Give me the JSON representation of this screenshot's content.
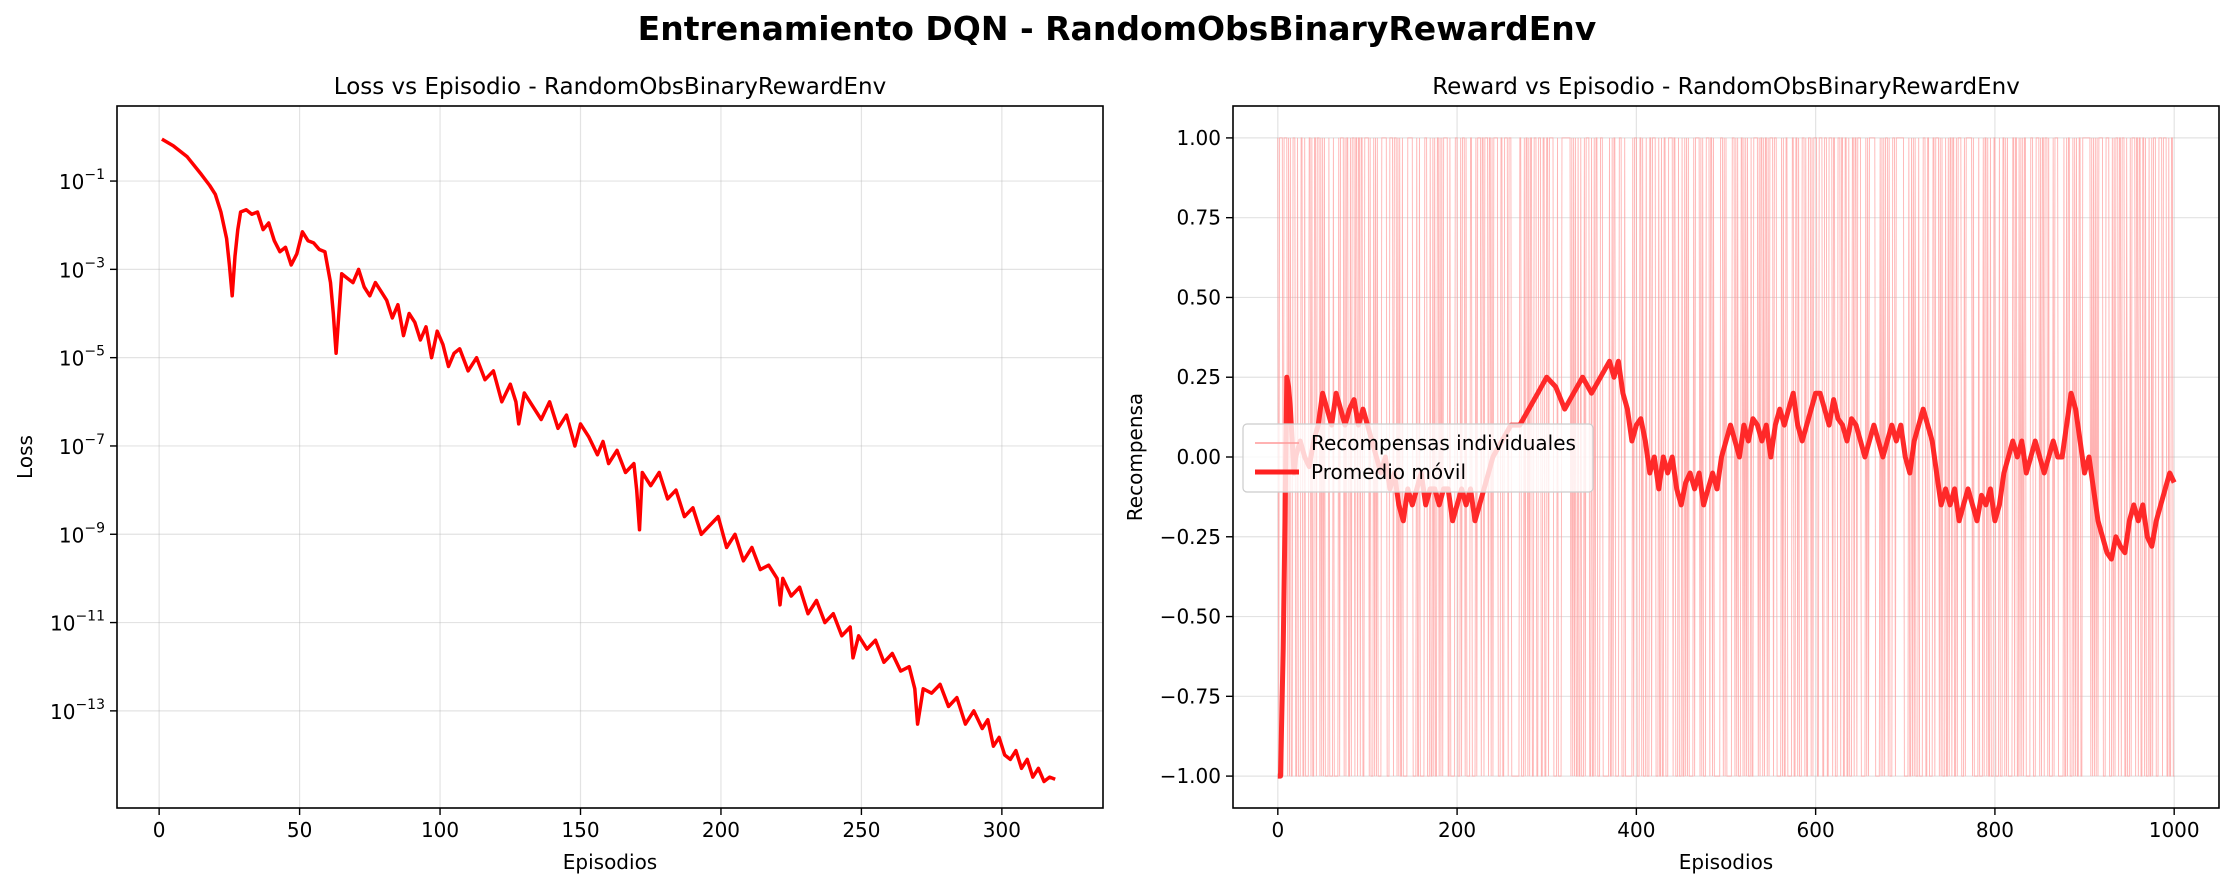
{
  "figure": {
    "suptitle": "Entrenamiento DQN - RandomObsBinaryRewardEnv"
  },
  "chart_data": [
    {
      "type": "line",
      "title": "Loss vs Episodio - RandomObsBinaryRewardEnv",
      "xlabel": "Episodios",
      "ylabel": "Loss",
      "xscale": "linear",
      "yscale": "log",
      "xlim": [
        -15,
        336
      ],
      "ylim_exp": [
        -15.2,
        0.7
      ],
      "xticks": [
        "0",
        "50",
        "100",
        "150",
        "200",
        "250",
        "300"
      ],
      "xtick_values": [
        0,
        50,
        100,
        150,
        200,
        250,
        300
      ],
      "ytick_exponents": [
        -13,
        -11,
        -9,
        -7,
        -5,
        -3,
        -1
      ],
      "ytick_base": "10",
      "grid": true,
      "series": [
        {
          "color": "#ff0000",
          "x": [
            1,
            5,
            10,
            15,
            18,
            20,
            22,
            24,
            25,
            26,
            27,
            28,
            29,
            31,
            33,
            35,
            37,
            39,
            41,
            43,
            45,
            47,
            49,
            51,
            53,
            55,
            57,
            59,
            61,
            62,
            63,
            64,
            65,
            67,
            69,
            71,
            73,
            75,
            77,
            79,
            81,
            83,
            85,
            87,
            89,
            91,
            93,
            95,
            97,
            99,
            101,
            103,
            105,
            107,
            110,
            113,
            116,
            119,
            122,
            125,
            127,
            128,
            130,
            133,
            136,
            139,
            142,
            145,
            148,
            150,
            153,
            156,
            158,
            160,
            163,
            166,
            169,
            170,
            171,
            172,
            175,
            178,
            181,
            184,
            187,
            190,
            193,
            196,
            199,
            202,
            205,
            208,
            211,
            214,
            217,
            220,
            221,
            222,
            225,
            228,
            231,
            234,
            237,
            240,
            243,
            246,
            247,
            249,
            252,
            255,
            258,
            261,
            264,
            267,
            269,
            270,
            272,
            275,
            278,
            281,
            284,
            287,
            290,
            293,
            295,
            297,
            299,
            301,
            303,
            305,
            307,
            309,
            311,
            313,
            315,
            317,
            319
          ],
          "log10_y": [
            -0.05,
            -0.2,
            -0.45,
            -0.85,
            -1.1,
            -1.3,
            -1.7,
            -2.3,
            -2.9,
            -3.6,
            -2.7,
            -2.1,
            -1.7,
            -1.65,
            -1.75,
            -1.7,
            -2.1,
            -1.95,
            -2.35,
            -2.6,
            -2.5,
            -2.9,
            -2.65,
            -2.15,
            -2.35,
            -2.4,
            -2.55,
            -2.6,
            -3.3,
            -4.0,
            -4.9,
            -4.0,
            -3.1,
            -3.2,
            -3.3,
            -3.0,
            -3.4,
            -3.6,
            -3.3,
            -3.5,
            -3.7,
            -4.1,
            -3.8,
            -4.5,
            -4.0,
            -4.2,
            -4.6,
            -4.3,
            -5.0,
            -4.4,
            -4.7,
            -5.2,
            -4.9,
            -4.8,
            -5.3,
            -5.0,
            -5.5,
            -5.3,
            -6.0,
            -5.6,
            -6.0,
            -6.5,
            -5.8,
            -6.1,
            -6.4,
            -6.0,
            -6.6,
            -6.3,
            -7.0,
            -6.5,
            -6.8,
            -7.2,
            -6.9,
            -7.4,
            -7.1,
            -7.6,
            -7.4,
            -8.0,
            -8.9,
            -7.6,
            -7.9,
            -7.6,
            -8.2,
            -8.0,
            -8.6,
            -8.4,
            -9.0,
            -8.8,
            -8.6,
            -9.3,
            -9.0,
            -9.6,
            -9.3,
            -9.8,
            -9.7,
            -10.0,
            -10.6,
            -10.0,
            -10.4,
            -10.2,
            -10.8,
            -10.5,
            -11.0,
            -10.8,
            -11.3,
            -11.1,
            -11.8,
            -11.3,
            -11.6,
            -11.4,
            -11.9,
            -11.7,
            -12.1,
            -12.0,
            -12.5,
            -13.3,
            -12.5,
            -12.6,
            -12.4,
            -12.9,
            -12.7,
            -13.3,
            -13.0,
            -13.4,
            -13.2,
            -13.8,
            -13.6,
            -14.0,
            -14.1,
            -13.9,
            -14.3,
            -14.1,
            -14.5,
            -14.3,
            -14.6,
            -14.5,
            -14.55
          ]
        }
      ]
    },
    {
      "type": "line",
      "title": "Reward vs Episodio - RandomObsBinaryRewardEnv",
      "xlabel": "Episodios",
      "ylabel": "Recompensa",
      "xscale": "linear",
      "yscale": "linear",
      "xlim": [
        -50,
        1050
      ],
      "ylim": [
        -1.1,
        1.1
      ],
      "xticks": [
        "0",
        "200",
        "400",
        "600",
        "800",
        "1000"
      ],
      "xtick_values": [
        0,
        200,
        400,
        600,
        800,
        1000
      ],
      "yticks": [
        "−1.00",
        "−0.75",
        "−0.50",
        "−0.25",
        "0.00",
        "0.25",
        "0.50",
        "0.75",
        "1.00"
      ],
      "ytick_values": [
        -1.0,
        -0.75,
        -0.5,
        -0.25,
        0.0,
        0.25,
        0.5,
        0.75,
        1.0
      ],
      "grid": true,
      "legend": {
        "placement": "center-left",
        "entries": [
          {
            "label": "Recompensas individuales",
            "color": "#ff9999"
          },
          {
            "label": "Promedio móvil",
            "color": "#ff2020"
          }
        ]
      },
      "series": [
        {
          "label": "Recompensas individuales",
          "color": "#ff9999",
          "x_range": [
            0,
            1000
          ],
          "values": [
            -1,
            1
          ],
          "episodes": 1000
        },
        {
          "label": "Promedio móvil",
          "color": "#ff2020",
          "x": [
            0,
            3,
            6,
            8,
            10,
            12,
            14,
            16,
            18,
            20,
            25,
            30,
            35,
            40,
            45,
            50,
            55,
            60,
            65,
            70,
            75,
            80,
            85,
            90,
            95,
            100,
            105,
            110,
            115,
            120,
            125,
            130,
            135,
            140,
            145,
            150,
            155,
            160,
            165,
            170,
            175,
            180,
            185,
            190,
            195,
            200,
            205,
            210,
            215,
            220,
            225,
            230,
            235,
            240,
            250,
            260,
            270,
            280,
            290,
            300,
            310,
            320,
            330,
            340,
            350,
            360,
            370,
            375,
            380,
            385,
            390,
            395,
            400,
            405,
            410,
            415,
            420,
            425,
            430,
            435,
            440,
            445,
            450,
            455,
            460,
            465,
            470,
            475,
            480,
            485,
            490,
            495,
            500,
            505,
            510,
            515,
            520,
            525,
            530,
            535,
            540,
            545,
            550,
            555,
            560,
            565,
            570,
            575,
            580,
            585,
            590,
            595,
            600,
            605,
            610,
            615,
            620,
            625,
            630,
            635,
            640,
            645,
            650,
            655,
            660,
            665,
            670,
            675,
            680,
            685,
            690,
            695,
            700,
            705,
            710,
            715,
            720,
            725,
            730,
            735,
            740,
            745,
            750,
            755,
            760,
            765,
            770,
            775,
            780,
            785,
            790,
            795,
            800,
            805,
            810,
            815,
            820,
            825,
            830,
            835,
            840,
            845,
            850,
            855,
            860,
            865,
            870,
            875,
            880,
            885,
            890,
            895,
            900,
            905,
            910,
            915,
            920,
            925,
            930,
            935,
            940,
            945,
            950,
            955,
            960,
            965,
            970,
            975,
            980,
            985,
            990,
            995,
            1000
          ],
          "y": [
            -1.0,
            -1.0,
            -0.6,
            -0.2,
            0.25,
            0.22,
            0.15,
            0.05,
            -0.05,
            0.0,
            0.05,
            0.0,
            -0.03,
            0.05,
            0.1,
            0.2,
            0.15,
            0.1,
            0.2,
            0.15,
            0.1,
            0.15,
            0.18,
            0.1,
            0.15,
            0.1,
            0.05,
            0.0,
            -0.05,
            0.0,
            -0.1,
            -0.05,
            -0.15,
            -0.2,
            -0.1,
            -0.15,
            -0.1,
            -0.05,
            -0.15,
            -0.1,
            -0.1,
            -0.15,
            -0.1,
            -0.1,
            -0.2,
            -0.15,
            -0.1,
            -0.15,
            -0.1,
            -0.2,
            -0.15,
            -0.1,
            -0.05,
            0.0,
            0.05,
            0.1,
            0.1,
            0.15,
            0.2,
            0.25,
            0.22,
            0.15,
            0.2,
            0.25,
            0.2,
            0.25,
            0.3,
            0.25,
            0.3,
            0.2,
            0.15,
            0.05,
            0.1,
            0.12,
            0.05,
            -0.05,
            0.0,
            -0.1,
            0.0,
            -0.05,
            0.0,
            -0.1,
            -0.15,
            -0.08,
            -0.05,
            -0.1,
            -0.05,
            -0.15,
            -0.1,
            -0.05,
            -0.1,
            0.0,
            0.05,
            0.1,
            0.05,
            0.0,
            0.1,
            0.05,
            0.12,
            0.1,
            0.05,
            0.1,
            0.0,
            0.1,
            0.15,
            0.1,
            0.15,
            0.2,
            0.1,
            0.05,
            0.1,
            0.15,
            0.2,
            0.2,
            0.15,
            0.1,
            0.18,
            0.12,
            0.1,
            0.05,
            0.12,
            0.1,
            0.05,
            0.0,
            0.05,
            0.1,
            0.05,
            0.0,
            0.05,
            0.1,
            0.05,
            0.1,
            0.0,
            -0.05,
            0.05,
            0.1,
            0.15,
            0.1,
            0.05,
            -0.05,
            -0.15,
            -0.1,
            -0.15,
            -0.1,
            -0.2,
            -0.15,
            -0.1,
            -0.15,
            -0.2,
            -0.12,
            -0.15,
            -0.1,
            -0.2,
            -0.15,
            -0.05,
            0.0,
            0.05,
            0.0,
            0.05,
            -0.05,
            0.0,
            0.05,
            0.0,
            -0.05,
            0.0,
            0.05,
            0.0,
            0.0,
            0.1,
            0.2,
            0.15,
            0.05,
            -0.05,
            0.0,
            -0.1,
            -0.2,
            -0.25,
            -0.3,
            -0.32,
            -0.25,
            -0.28,
            -0.3,
            -0.2,
            -0.15,
            -0.2,
            -0.15,
            -0.25,
            -0.28,
            -0.2,
            -0.15,
            -0.1,
            -0.05,
            -0.08
          ]
        }
      ]
    }
  ]
}
